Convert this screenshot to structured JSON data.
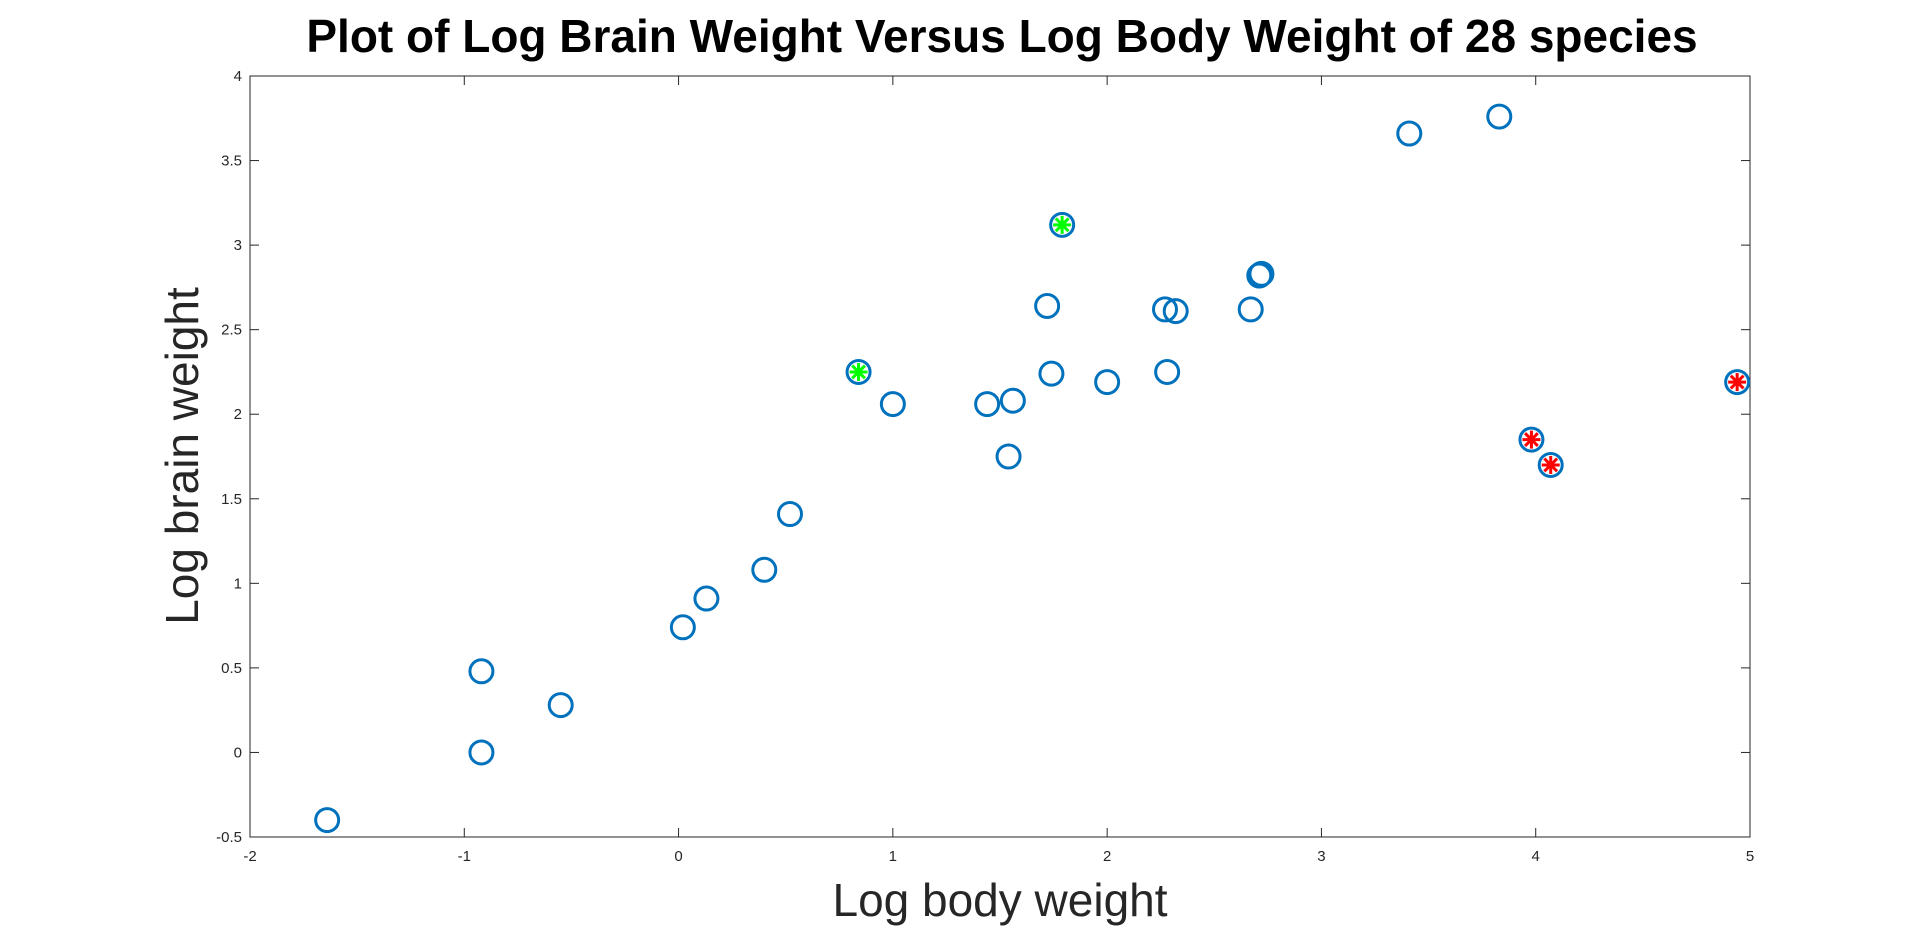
{
  "chart_data": {
    "type": "scatter",
    "title": "Plot of Log Brain Weight Versus Log Body Weight of 28 species",
    "xlabel": "Log body weight",
    "ylabel": "Log brain weight",
    "xlim": [
      -2,
      5
    ],
    "ylim": [
      -0.5,
      4
    ],
    "xticks": [
      "-2",
      "-1",
      "0",
      "1",
      "2",
      "3",
      "4",
      "5"
    ],
    "yticks": [
      "-0.5",
      "0",
      "0.5",
      "1",
      "1.5",
      "2",
      "2.5",
      "3",
      "3.5",
      "4"
    ],
    "grid": false,
    "legend": "none",
    "colors": {
      "circle": "#0072BD",
      "highlight_green": "#00FF00",
      "highlight_red": "#FF0000"
    },
    "series": [
      {
        "marker": "circle",
        "color": "#0072BD",
        "points": [
          {
            "x": -1.64,
            "y": -0.4
          },
          {
            "x": -0.92,
            "y": 0.0
          },
          {
            "x": -0.92,
            "y": 0.48
          },
          {
            "x": -0.55,
            "y": 0.28
          },
          {
            "x": 0.02,
            "y": 0.74
          },
          {
            "x": 0.13,
            "y": 0.91
          },
          {
            "x": 0.4,
            "y": 1.08
          },
          {
            "x": 0.52,
            "y": 1.41
          },
          {
            "x": 0.84,
            "y": 2.25
          },
          {
            "x": 1.0,
            "y": 2.06
          },
          {
            "x": 1.44,
            "y": 2.06
          },
          {
            "x": 1.54,
            "y": 1.75
          },
          {
            "x": 1.56,
            "y": 2.08
          },
          {
            "x": 1.72,
            "y": 2.64
          },
          {
            "x": 1.74,
            "y": 2.24
          },
          {
            "x": 1.79,
            "y": 3.12
          },
          {
            "x": 2.0,
            "y": 2.19
          },
          {
            "x": 2.27,
            "y": 2.62
          },
          {
            "x": 2.28,
            "y": 2.25
          },
          {
            "x": 2.32,
            "y": 2.61
          },
          {
            "x": 2.67,
            "y": 2.62
          },
          {
            "x": 2.71,
            "y": 2.82
          },
          {
            "x": 2.72,
            "y": 2.83
          },
          {
            "x": 3.41,
            "y": 3.66
          },
          {
            "x": 3.83,
            "y": 3.76
          },
          {
            "x": 3.98,
            "y": 1.85
          },
          {
            "x": 4.07,
            "y": 1.7
          },
          {
            "x": 4.94,
            "y": 2.19
          }
        ]
      },
      {
        "marker": "star",
        "color": "#00FF00",
        "points": [
          {
            "x": 0.84,
            "y": 2.25
          },
          {
            "x": 1.79,
            "y": 3.12
          }
        ]
      },
      {
        "marker": "star",
        "color": "#FF0000",
        "points": [
          {
            "x": 3.98,
            "y": 1.85
          },
          {
            "x": 4.07,
            "y": 1.7
          },
          {
            "x": 4.94,
            "y": 2.19
          }
        ]
      }
    ]
  }
}
